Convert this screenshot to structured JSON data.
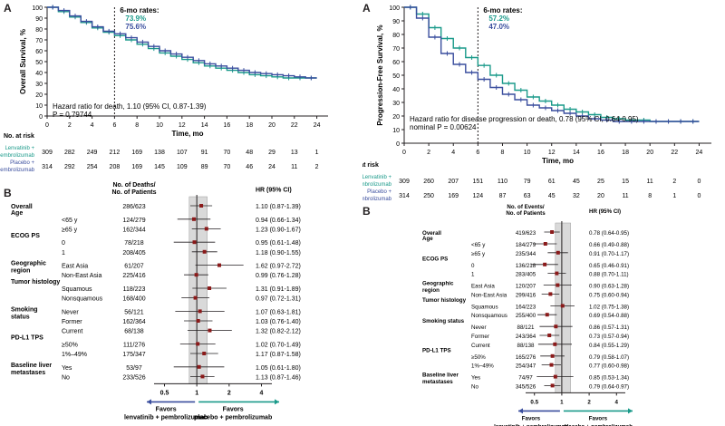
{
  "colors": {
    "lenvatinib": "#1a9a8a",
    "placebo": "#3a4e9e",
    "point": "#8b1a1a",
    "text": "#231f20",
    "ci_band": "#d9d9d9"
  },
  "chart_data": [
    {
      "panel": "A",
      "type": "line",
      "ylabel": "Overall Survival, %",
      "xlabel": "Time, mo",
      "xlim": [
        0,
        25
      ],
      "ylim": [
        0,
        100
      ],
      "xticks": [
        0,
        2,
        4,
        6,
        8,
        10,
        12,
        14,
        16,
        18,
        20,
        22,
        24
      ],
      "yticks": [
        0,
        10,
        20,
        30,
        40,
        50,
        60,
        70,
        80,
        90,
        100
      ],
      "rates_title": "6-mo rates:",
      "vline_x": 6,
      "hr_text": "Hazard ratio for death, 1.10 (95% CI, 0.87-1.39)",
      "p_text": "P = 0.79744",
      "series": [
        {
          "name": "Lenvatinib + pembrolizumab",
          "rate": "73.9%",
          "x": [
            0,
            1,
            2,
            3,
            4,
            5,
            6,
            7,
            8,
            9,
            10,
            11,
            12,
            13,
            14,
            15,
            16,
            17,
            18,
            19,
            20,
            21,
            22,
            23,
            24
          ],
          "y": [
            100,
            96,
            91,
            86,
            81,
            77,
            73.9,
            70,
            66,
            62,
            58,
            55,
            52,
            49,
            46,
            44,
            42,
            40,
            38,
            37,
            36,
            35,
            35,
            35,
            35
          ]
        },
        {
          "name": "Placebo + pembrolizumab",
          "rate": "75.6%",
          "x": [
            0,
            1,
            2,
            3,
            4,
            5,
            6,
            7,
            8,
            9,
            10,
            11,
            12,
            13,
            14,
            15,
            16,
            17,
            18,
            19,
            20,
            21,
            22,
            23,
            24
          ],
          "y": [
            100,
            97,
            92,
            87,
            82,
            78,
            75.6,
            72,
            68,
            64,
            60,
            57,
            54,
            51,
            48,
            46,
            44,
            42,
            40,
            39,
            38,
            37,
            36,
            35,
            35
          ]
        }
      ],
      "risk_table": {
        "title": "No. at risk",
        "columns": [
          0,
          2,
          4,
          6,
          8,
          10,
          12,
          14,
          16,
          18,
          20,
          22,
          24
        ],
        "rows": [
          {
            "label": "Lenvatinib + pembrolizumab",
            "values": [
              "309",
              "282",
              "249",
              "212",
              "169",
              "138",
              "107",
              "91",
              "70",
              "48",
              "29",
              "13",
              "1"
            ]
          },
          {
            "label": "Placebo + pembrolizumab",
            "values": [
              "314",
              "292",
              "254",
              "208",
              "169",
              "145",
              "109",
              "89",
              "70",
              "46",
              "24",
              "11",
              "2"
            ]
          }
        ]
      }
    },
    {
      "panel": "A",
      "type": "line",
      "ylabel": "Progression-Free Survival, %",
      "xlabel": "Time, mo",
      "xlim": [
        0,
        25
      ],
      "ylim": [
        0,
        100
      ],
      "xticks": [
        0,
        2,
        4,
        6,
        8,
        10,
        12,
        14,
        16,
        18,
        20,
        22,
        24
      ],
      "yticks": [
        0,
        10,
        20,
        30,
        40,
        50,
        60,
        70,
        80,
        90,
        100
      ],
      "rates_title": "6-mo rates:",
      "vline_x": 6,
      "hr_text": "Hazard ratio for disease progression or death, 0.78 (95% CI, 0.64-0.95)",
      "p_text": "nominal P = 0.00624",
      "series": [
        {
          "name": "Lenvatinib + pembrolizumab",
          "rate": "57.2%",
          "x": [
            0,
            1,
            2,
            3,
            4,
            5,
            6,
            7,
            8,
            9,
            10,
            11,
            12,
            13,
            14,
            15,
            16,
            17,
            18,
            19,
            20,
            21,
            22,
            23,
            24
          ],
          "y": [
            100,
            95,
            85,
            77,
            70,
            63,
            57.2,
            50,
            44,
            39,
            34,
            31,
            28,
            25,
            23,
            21,
            19,
            18,
            17,
            17,
            16,
            16,
            16,
            16,
            16
          ]
        },
        {
          "name": "Placebo + pembrolizumab",
          "rate": "47.0%",
          "x": [
            0,
            1,
            2,
            3,
            4,
            5,
            6,
            7,
            8,
            9,
            10,
            11,
            12,
            13,
            14,
            15,
            16,
            17,
            18,
            19,
            20,
            21,
            22,
            23,
            24
          ],
          "y": [
            100,
            92,
            78,
            66,
            58,
            52,
            47,
            41,
            36,
            32,
            28,
            26,
            24,
            22,
            20,
            18,
            17,
            16,
            16,
            16,
            16,
            16,
            16,
            16,
            16
          ]
        }
      ],
      "risk_table": {
        "title": "No. at risk",
        "columns": [
          0,
          2,
          4,
          6,
          8,
          10,
          12,
          14,
          16,
          18,
          20,
          22,
          24
        ],
        "rows": [
          {
            "label": "Lenvatinib + pembrolizumab",
            "values": [
              "309",
              "260",
              "207",
              "151",
              "110",
              "79",
              "61",
              "45",
              "25",
              "15",
              "11",
              "2",
              "0"
            ]
          },
          {
            "label": "Placebo + pembrolizumab",
            "values": [
              "314",
              "250",
              "169",
              "124",
              "87",
              "63",
              "45",
              "32",
              "20",
              "11",
              "8",
              "1",
              "0"
            ]
          }
        ]
      }
    },
    {
      "panel": "B",
      "type": "forest",
      "count_header": [
        "No. of Deaths/",
        "No. of Patients"
      ],
      "hr_header": "HR (95% CI)",
      "xticks": [
        0.5,
        1,
        2,
        4
      ],
      "xlim": [
        0.4,
        5.0
      ],
      "favors_left": [
        "Favors",
        "lenvatinib + pembrolizumab"
      ],
      "favors_right": [
        "Favors",
        "placebo + pembrolizumab"
      ],
      "rows": [
        {
          "section": "Overall",
          "counts": "286/623",
          "hr_text": "1.10 (0.87-1.39)",
          "hr": 1.1,
          "lo": 0.87,
          "hi": 1.39
        },
        {
          "section": "Age",
          "label": "<65 y",
          "counts": "124/279",
          "hr_text": "0.94 (0.66-1.34)",
          "hr": 0.94,
          "lo": 0.66,
          "hi": 1.34
        },
        {
          "label": "≥65 y",
          "counts": "162/344",
          "hr_text": "1.23 (0.90-1.67)",
          "hr": 1.23,
          "lo": 0.9,
          "hi": 1.67
        },
        {
          "section": "ECOG PS",
          "label": "0",
          "counts": "78/218",
          "hr_text": "0.95 (0.61-1.48)",
          "hr": 0.95,
          "lo": 0.61,
          "hi": 1.48
        },
        {
          "label": "1",
          "counts": "208/405",
          "hr_text": "1.18 (0.90-1.55)",
          "hr": 1.18,
          "lo": 0.9,
          "hi": 1.55
        },
        {
          "section": "Geographic region",
          "label": "East Asia",
          "counts": "61/207",
          "hr_text": "1.62 (0.97-2.72)",
          "hr": 1.62,
          "lo": 0.97,
          "hi": 2.72
        },
        {
          "label": "Non-East Asia",
          "counts": "225/416",
          "hr_text": "0.99 (0.76-1.28)",
          "hr": 0.99,
          "lo": 0.76,
          "hi": 1.28
        },
        {
          "section": "Tumor histology",
          "label": "Squamous",
          "counts": "118/223",
          "hr_text": "1.31 (0.91-1.89)",
          "hr": 1.31,
          "lo": 0.91,
          "hi": 1.89
        },
        {
          "label": "Nonsquamous",
          "counts": "168/400",
          "hr_text": "0.97 (0.72-1.31)",
          "hr": 0.97,
          "lo": 0.72,
          "hi": 1.31
        },
        {
          "section": "Smoking status",
          "label": "Never",
          "counts": "56/121",
          "hr_text": "1.07 (0.63-1.81)",
          "hr": 1.07,
          "lo": 0.63,
          "hi": 1.81
        },
        {
          "label": "Former",
          "counts": "162/364",
          "hr_text": "1.03 (0.76-1.40)",
          "hr": 1.03,
          "lo": 0.76,
          "hi": 1.4
        },
        {
          "label": "Current",
          "counts": "68/138",
          "hr_text": "1.32 (0.82-2.12)",
          "hr": 1.32,
          "lo": 0.82,
          "hi": 2.12
        },
        {
          "section": "PD-L1 TPS",
          "label": "≥50%",
          "counts": "111/276",
          "hr_text": "1.02 (0.70-1.49)",
          "hr": 1.02,
          "lo": 0.7,
          "hi": 1.49
        },
        {
          "label": "1%–49%",
          "counts": "175/347",
          "hr_text": "1.17 (0.87-1.58)",
          "hr": 1.17,
          "lo": 0.87,
          "hi": 1.58
        },
        {
          "section": "Baseline liver metastases",
          "label": "Yes",
          "counts": "53/97",
          "hr_text": "1.05 (0.61-1.80)",
          "hr": 1.05,
          "lo": 0.61,
          "hi": 1.8
        },
        {
          "label": "No",
          "counts": "233/526",
          "hr_text": "1.13 (0.87-1.46)",
          "hr": 1.13,
          "lo": 0.87,
          "hi": 1.46
        }
      ]
    },
    {
      "panel": "B",
      "type": "forest",
      "count_header": [
        "No. of Events/",
        "No. of Patients"
      ],
      "hr_header": "HR (95% CI)",
      "xticks": [
        0.5,
        1,
        2,
        4
      ],
      "xlim": [
        0.4,
        5.0
      ],
      "favors_left": [
        "Favors",
        "lenvatinib + pembrolizumab"
      ],
      "favors_right": [
        "Favors",
        "placebo + pembrolizumab"
      ],
      "rows": [
        {
          "section": "Overall",
          "counts": "419/623",
          "hr_text": "0.78 (0.64-0.95)",
          "hr": 0.78,
          "lo": 0.64,
          "hi": 0.95
        },
        {
          "section": "Age",
          "label": "<65 y",
          "counts": "184/279",
          "hr_text": "0.66 (0.49-0.88)",
          "hr": 0.66,
          "lo": 0.49,
          "hi": 0.88
        },
        {
          "label": "≥65 y",
          "counts": "235/344",
          "hr_text": "0.91 (0.70-1.17)",
          "hr": 0.91,
          "lo": 0.7,
          "hi": 1.17
        },
        {
          "section": "ECOG PS",
          "label": "0",
          "counts": "136/218",
          "hr_text": "0.65 (0.46-0.91)",
          "hr": 0.65,
          "lo": 0.46,
          "hi": 0.91
        },
        {
          "label": "1",
          "counts": "283/405",
          "hr_text": "0.88 (0.70-1.11)",
          "hr": 0.88,
          "lo": 0.7,
          "hi": 1.11
        },
        {
          "section": "Geographic region",
          "label": "East Asia",
          "counts": "120/207",
          "hr_text": "0.90 (0.63-1.28)",
          "hr": 0.9,
          "lo": 0.63,
          "hi": 1.28
        },
        {
          "label": "Non-East Asia",
          "counts": "299/416",
          "hr_text": "0.75 (0.60-0.94)",
          "hr": 0.75,
          "lo": 0.6,
          "hi": 0.94
        },
        {
          "section": "Tumor histology",
          "label": "Squamous",
          "counts": "164/223",
          "hr_text": "1.02 (0.75-1.38)",
          "hr": 1.02,
          "lo": 0.75,
          "hi": 1.38
        },
        {
          "label": "Nonsquamous",
          "counts": "255/400",
          "hr_text": "0.69 (0.54-0.88)",
          "hr": 0.69,
          "lo": 0.54,
          "hi": 0.88
        },
        {
          "section": "Smoking status",
          "label": "Never",
          "counts": "88/121",
          "hr_text": "0.86 (0.57-1.31)",
          "hr": 0.86,
          "lo": 0.57,
          "hi": 1.31
        },
        {
          "label": "Former",
          "counts": "243/364",
          "hr_text": "0.73 (0.57-0.94)",
          "hr": 0.73,
          "lo": 0.57,
          "hi": 0.94
        },
        {
          "label": "Current",
          "counts": "88/138",
          "hr_text": "0.84 (0.55-1.29)",
          "hr": 0.84,
          "lo": 0.55,
          "hi": 1.29
        },
        {
          "section": "PD-L1 TPS",
          "label": "≥50%",
          "counts": "165/276",
          "hr_text": "0.79 (0.58-1.07)",
          "hr": 0.79,
          "lo": 0.58,
          "hi": 1.07
        },
        {
          "label": "1%–49%",
          "counts": "254/347",
          "hr_text": "0.77 (0.60-0.98)",
          "hr": 0.77,
          "lo": 0.6,
          "hi": 0.98
        },
        {
          "section": "Baseline liver metastases",
          "label": "Yes",
          "counts": "74/97",
          "hr_text": "0.85 (0.53-1.34)",
          "hr": 0.85,
          "lo": 0.53,
          "hi": 1.34
        },
        {
          "label": "No",
          "counts": "345/526",
          "hr_text": "0.79 (0.64-0.97)",
          "hr": 0.79,
          "lo": 0.64,
          "hi": 0.97
        }
      ]
    }
  ]
}
